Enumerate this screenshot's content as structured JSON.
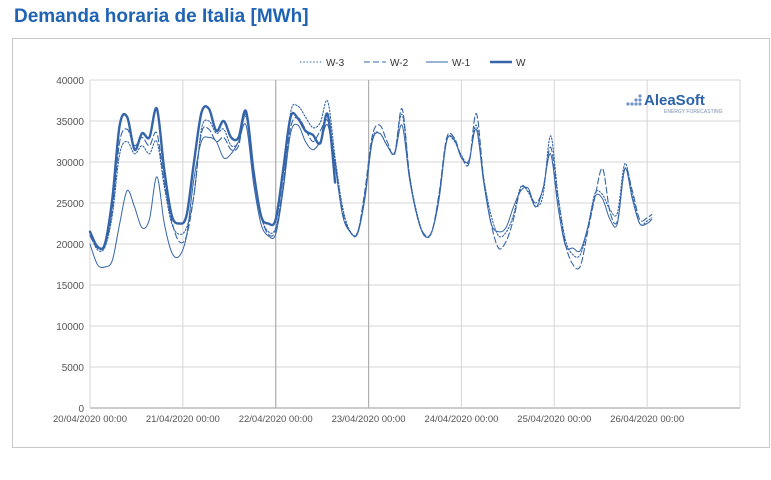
{
  "header": {
    "title": "Demanda horaria de Italia [MWh]"
  },
  "logo": {
    "name": "AleaSoft",
    "tagline": "ENERGY FORECASTING",
    "color": "#2a63a8"
  },
  "colors": {
    "series": "#3565a8",
    "grid": "#d6d6d6",
    "axis_text": "#555555",
    "divider": "#b0b0b0"
  },
  "chart_data": {
    "type": "line",
    "title": "Demanda horaria de Italia [MWh]",
    "xlabel": "",
    "ylabel": "",
    "ylim": [
      0,
      40000
    ],
    "yticks": [
      0,
      5000,
      10000,
      15000,
      20000,
      25000,
      30000,
      35000,
      40000
    ],
    "xlim": [
      0,
      7
    ],
    "xticks": [
      "20/04/2020 00:00",
      "21/04/2020 00:00",
      "22/04/2020 00:00",
      "23/04/2020 00:00",
      "24/04/2020 00:00",
      "25/04/2020 00:00",
      "26/04/2020 00:00"
    ],
    "x_unit": "days from 20/04/2020 00:00",
    "grid": true,
    "legend_position": "top-center",
    "series": [
      {
        "name": "W-3",
        "style": "dotted",
        "points": [
          [
            0,
            21200
          ],
          [
            0.08,
            19300
          ],
          [
            0.16,
            19600
          ],
          [
            0.24,
            23500
          ],
          [
            0.32,
            31000
          ],
          [
            0.4,
            32500
          ],
          [
            0.48,
            31000
          ],
          [
            0.56,
            32000
          ],
          [
            0.64,
            31000
          ],
          [
            0.72,
            32500
          ],
          [
            0.8,
            27000
          ],
          [
            0.88,
            22500
          ],
          [
            0.96,
            21200
          ],
          [
            1.04,
            22000
          ],
          [
            1.12,
            26000
          ],
          [
            1.2,
            34000
          ],
          [
            1.28,
            35000
          ],
          [
            1.36,
            33500
          ],
          [
            1.44,
            34000
          ],
          [
            1.52,
            32000
          ],
          [
            1.6,
            32500
          ],
          [
            1.68,
            35500
          ],
          [
            1.76,
            28500
          ],
          [
            1.84,
            23500
          ],
          [
            1.92,
            21500
          ],
          [
            2.0,
            22000
          ],
          [
            2.08,
            27000
          ],
          [
            2.16,
            36000
          ],
          [
            2.24,
            36800
          ],
          [
            2.32,
            35500
          ],
          [
            2.4,
            34200
          ],
          [
            2.48,
            34800
          ],
          [
            2.56,
            37400
          ],
          [
            2.64,
            30500
          ],
          [
            2.72,
            24500
          ],
          [
            2.8,
            21600
          ],
          [
            2.88,
            21400
          ],
          [
            2.96,
            26000
          ],
          [
            3.04,
            32800
          ],
          [
            3.12,
            33500
          ],
          [
            3.2,
            32000
          ],
          [
            3.28,
            31200
          ],
          [
            3.36,
            35800
          ],
          [
            3.44,
            28500
          ],
          [
            3.52,
            23800
          ],
          [
            3.6,
            21100
          ],
          [
            3.68,
            21400
          ],
          [
            3.76,
            26000
          ],
          [
            3.84,
            32600
          ],
          [
            3.92,
            32600
          ],
          [
            4.0,
            30800
          ],
          [
            4.08,
            30000
          ],
          [
            4.16,
            34500
          ],
          [
            4.24,
            28000
          ],
          [
            4.32,
            23500
          ],
          [
            4.4,
            21000
          ],
          [
            4.48,
            21400
          ],
          [
            4.56,
            23500
          ],
          [
            4.64,
            27000
          ],
          [
            4.72,
            26300
          ],
          [
            4.8,
            24600
          ],
          [
            4.88,
            26000
          ],
          [
            4.96,
            33200
          ],
          [
            5.04,
            26000
          ],
          [
            5.12,
            20500
          ],
          [
            5.2,
            18700
          ],
          [
            5.28,
            18700
          ],
          [
            5.36,
            22000
          ],
          [
            5.44,
            26200
          ],
          [
            5.52,
            26000
          ],
          [
            5.6,
            24200
          ],
          [
            5.68,
            23800
          ],
          [
            5.76,
            29800
          ],
          [
            5.84,
            26000
          ],
          [
            5.92,
            22500
          ],
          [
            6.0,
            22800
          ],
          [
            6.05,
            23200
          ]
        ]
      },
      {
        "name": "W-2",
        "style": "dashed",
        "points": [
          [
            0,
            21000
          ],
          [
            0.08,
            19500
          ],
          [
            0.16,
            19800
          ],
          [
            0.24,
            24000
          ],
          [
            0.32,
            32500
          ],
          [
            0.4,
            34000
          ],
          [
            0.48,
            32000
          ],
          [
            0.56,
            33000
          ],
          [
            0.64,
            32000
          ],
          [
            0.72,
            33500
          ],
          [
            0.8,
            27500
          ],
          [
            0.88,
            22800
          ],
          [
            0.96,
            20300
          ],
          [
            1.04,
            21000
          ],
          [
            1.12,
            26000
          ],
          [
            1.2,
            33500
          ],
          [
            1.28,
            34000
          ],
          [
            1.36,
            32500
          ],
          [
            1.44,
            33000
          ],
          [
            1.52,
            31500
          ],
          [
            1.6,
            32000
          ],
          [
            1.68,
            35800
          ],
          [
            1.76,
            28500
          ],
          [
            1.84,
            23500
          ],
          [
            1.92,
            21200
          ],
          [
            2.0,
            21700
          ],
          [
            2.08,
            27200
          ],
          [
            2.16,
            34200
          ],
          [
            2.24,
            35400
          ],
          [
            2.32,
            34000
          ],
          [
            2.4,
            32500
          ],
          [
            2.48,
            33800
          ],
          [
            2.56,
            35000
          ],
          [
            2.64,
            30000
          ],
          [
            2.72,
            24000
          ],
          [
            2.8,
            21500
          ],
          [
            2.88,
            21300
          ],
          [
            2.96,
            26500
          ],
          [
            3.04,
            33200
          ],
          [
            3.12,
            34500
          ],
          [
            3.2,
            32500
          ],
          [
            3.28,
            31000
          ],
          [
            3.36,
            36500
          ],
          [
            3.44,
            28500
          ],
          [
            3.52,
            23500
          ],
          [
            3.6,
            21200
          ],
          [
            3.68,
            21500
          ],
          [
            3.76,
            26200
          ],
          [
            3.84,
            32900
          ],
          [
            3.92,
            33000
          ],
          [
            4.0,
            30700
          ],
          [
            4.08,
            29800
          ],
          [
            4.16,
            35900
          ],
          [
            4.24,
            28000
          ],
          [
            4.32,
            22500
          ],
          [
            4.4,
            19500
          ],
          [
            4.48,
            20300
          ],
          [
            4.56,
            23000
          ],
          [
            4.64,
            26800
          ],
          [
            4.72,
            26500
          ],
          [
            4.8,
            25000
          ],
          [
            4.88,
            26800
          ],
          [
            4.96,
            31800
          ],
          [
            5.04,
            25500
          ],
          [
            5.12,
            20000
          ],
          [
            5.2,
            17500
          ],
          [
            5.28,
            17300
          ],
          [
            5.36,
            21500
          ],
          [
            5.44,
            25800
          ],
          [
            5.52,
            29200
          ],
          [
            5.6,
            23900
          ],
          [
            5.68,
            22800
          ],
          [
            5.76,
            29200
          ],
          [
            5.84,
            26500
          ],
          [
            5.92,
            23000
          ],
          [
            6.0,
            23200
          ],
          [
            6.05,
            23600
          ]
        ]
      },
      {
        "name": "W-1",
        "style": "thin",
        "points": [
          [
            0,
            20000
          ],
          [
            0.08,
            17500
          ],
          [
            0.16,
            17200
          ],
          [
            0.24,
            18000
          ],
          [
            0.32,
            22500
          ],
          [
            0.4,
            26500
          ],
          [
            0.48,
            24500
          ],
          [
            0.56,
            22000
          ],
          [
            0.64,
            23000
          ],
          [
            0.72,
            28200
          ],
          [
            0.8,
            22500
          ],
          [
            0.88,
            19000
          ],
          [
            0.96,
            18500
          ],
          [
            1.04,
            21000
          ],
          [
            1.12,
            28000
          ],
          [
            1.2,
            32500
          ],
          [
            1.28,
            33000
          ],
          [
            1.36,
            32500
          ],
          [
            1.44,
            30500
          ],
          [
            1.52,
            31000
          ],
          [
            1.6,
            32500
          ],
          [
            1.68,
            34500
          ],
          [
            1.76,
            27500
          ],
          [
            1.84,
            22500
          ],
          [
            1.92,
            21000
          ],
          [
            2.0,
            21200
          ],
          [
            2.08,
            26500
          ],
          [
            2.16,
            33500
          ],
          [
            2.24,
            34500
          ],
          [
            2.32,
            32500
          ],
          [
            2.4,
            31500
          ],
          [
            2.48,
            32500
          ],
          [
            2.56,
            34500
          ],
          [
            2.64,
            29500
          ],
          [
            2.72,
            23500
          ],
          [
            2.8,
            21500
          ],
          [
            2.88,
            21200
          ],
          [
            2.96,
            25500
          ],
          [
            3.04,
            32500
          ],
          [
            3.12,
            33500
          ],
          [
            3.2,
            32000
          ],
          [
            3.28,
            31000
          ],
          [
            3.36,
            34500
          ],
          [
            3.44,
            28000
          ],
          [
            3.52,
            23500
          ],
          [
            3.6,
            21000
          ],
          [
            3.68,
            21500
          ],
          [
            3.76,
            25500
          ],
          [
            3.84,
            32500
          ],
          [
            3.92,
            32800
          ],
          [
            4.0,
            30500
          ],
          [
            4.08,
            30200
          ],
          [
            4.16,
            34000
          ],
          [
            4.24,
            27500
          ],
          [
            4.32,
            22500
          ],
          [
            4.4,
            21500
          ],
          [
            4.48,
            22000
          ],
          [
            4.56,
            24500
          ],
          [
            4.64,
            26500
          ],
          [
            4.72,
            26800
          ],
          [
            4.8,
            24500
          ],
          [
            4.88,
            26800
          ],
          [
            4.96,
            31000
          ],
          [
            5.04,
            24500
          ],
          [
            5.12,
            19800
          ],
          [
            5.2,
            19500
          ],
          [
            5.28,
            19200
          ],
          [
            5.36,
            22000
          ],
          [
            5.44,
            25800
          ],
          [
            5.52,
            25500
          ],
          [
            5.6,
            23000
          ],
          [
            5.68,
            22500
          ],
          [
            5.76,
            29200
          ],
          [
            5.84,
            25500
          ],
          [
            5.92,
            22500
          ],
          [
            6.0,
            22500
          ],
          [
            6.05,
            23000
          ]
        ]
      },
      {
        "name": "W",
        "style": "thick",
        "points": [
          [
            0,
            21500
          ],
          [
            0.08,
            19700
          ],
          [
            0.16,
            20000
          ],
          [
            0.24,
            25500
          ],
          [
            0.32,
            34500
          ],
          [
            0.4,
            35500
          ],
          [
            0.48,
            31500
          ],
          [
            0.56,
            33500
          ],
          [
            0.64,
            33000
          ],
          [
            0.72,
            36500
          ],
          [
            0.8,
            29000
          ],
          [
            0.88,
            23500
          ],
          [
            0.96,
            22500
          ],
          [
            1.04,
            23500
          ],
          [
            1.12,
            30000
          ],
          [
            1.2,
            36000
          ],
          [
            1.28,
            36500
          ],
          [
            1.36,
            33800
          ],
          [
            1.44,
            35000
          ],
          [
            1.52,
            33000
          ],
          [
            1.6,
            33000
          ],
          [
            1.68,
            36200
          ],
          [
            1.76,
            29000
          ],
          [
            1.84,
            23500
          ],
          [
            1.92,
            22500
          ],
          [
            2.0,
            23000
          ],
          [
            2.08,
            29000
          ],
          [
            2.16,
            35500
          ],
          [
            2.24,
            35300
          ],
          [
            2.32,
            33800
          ],
          [
            2.4,
            33300
          ],
          [
            2.48,
            32300
          ],
          [
            2.56,
            35800
          ],
          [
            2.64,
            27500
          ]
        ]
      }
    ]
  }
}
